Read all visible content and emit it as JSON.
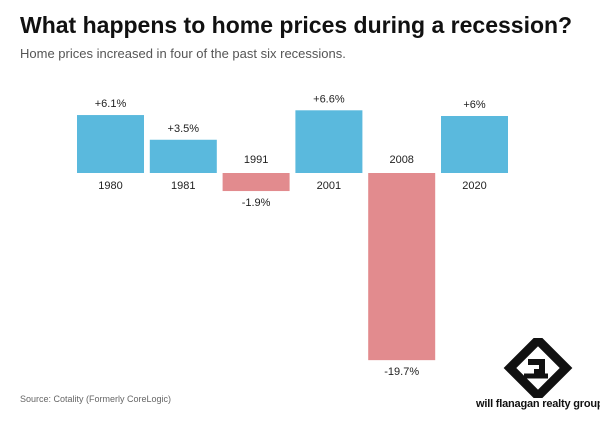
{
  "chart_data": {
    "type": "bar",
    "title": "What happens to home prices during a recession?",
    "subtitle": "Home prices increased in four of the past six recessions.",
    "categories": [
      "1980",
      "1981",
      "1991",
      "2001",
      "2008",
      "2020"
    ],
    "values": [
      6.1,
      3.5,
      -1.9,
      6.6,
      -19.7,
      6
    ],
    "value_labels": [
      "+6.1%",
      "+3.5%",
      "-1.9%",
      "+6.6%",
      "-19.7%",
      "+6%"
    ],
    "xlabel": "",
    "ylabel": "",
    "ylim": [
      -19.7,
      6.6
    ],
    "grid": false,
    "legend": "none",
    "colors": {
      "positive": "#5ab9dd",
      "negative": "#e28b8e"
    }
  },
  "source": "Source: Cotality (Formerly CoreLogic)",
  "brand": {
    "name": "will flanagan realty group",
    "logo_icon": "wf-monogram-icon",
    "color": "#111111"
  }
}
